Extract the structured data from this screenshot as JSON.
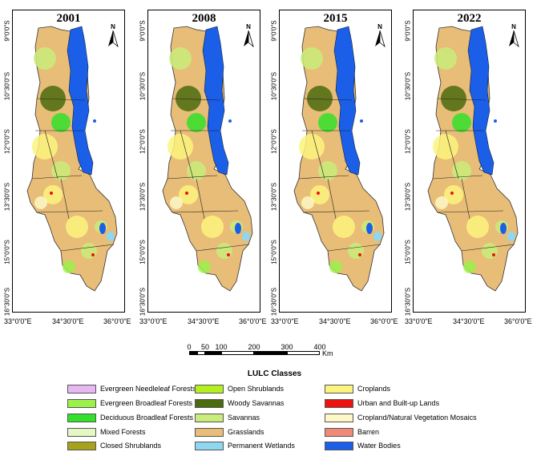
{
  "panels": [
    {
      "year": "2001"
    },
    {
      "year": "2008"
    },
    {
      "year": "2015"
    },
    {
      "year": "2022"
    }
  ],
  "north_label": "N",
  "lat_labels": [
    "9°0'0\"S",
    "10°30'0\"S",
    "12°0'0\"S",
    "13°30'0\"S",
    "15°0'0\"S",
    "16°30'0\"S"
  ],
  "lon_labels": [
    "33°0'0\"E",
    "34°30'0\"E",
    "36°0'0\"E"
  ],
  "scale": {
    "ticks": [
      "0",
      "50",
      "100",
      "200",
      "300",
      "400"
    ],
    "unit": "Km"
  },
  "legend": {
    "title": "LULC Classes",
    "items": [
      {
        "label": "Evergreen Needleleaf Forests",
        "color": "#e7b8f2"
      },
      {
        "label": "Evergreen Broadleaf Forests",
        "color": "#9cf04a"
      },
      {
        "label": "Deciduous Broadleaf Forests",
        "color": "#33e12a"
      },
      {
        "label": "Mixed Forests",
        "color": "#e6f7c3"
      },
      {
        "label": "Closed Shrublands",
        "color": "#a7a21a"
      },
      {
        "label": "Open Shrublands",
        "color": "#b4f01f"
      },
      {
        "label": "Woody Savannas",
        "color": "#4b6b0f"
      },
      {
        "label": "Savannas",
        "color": "#c9ec7a"
      },
      {
        "label": "Grasslands",
        "color": "#e8bd78"
      },
      {
        "label": "Permanent Wetlands",
        "color": "#8fd6f0"
      },
      {
        "label": "Croplands",
        "color": "#fbf47e"
      },
      {
        "label": "Urban and Built-up Lands",
        "color": "#ee1111"
      },
      {
        "label": "Cropland/Natural Vegetation Mosaics",
        "color": "#fdf8c6"
      },
      {
        "label": "Barren",
        "color": "#f08a78"
      },
      {
        "label": "Water Bodies",
        "color": "#1b5ee8"
      }
    ]
  }
}
